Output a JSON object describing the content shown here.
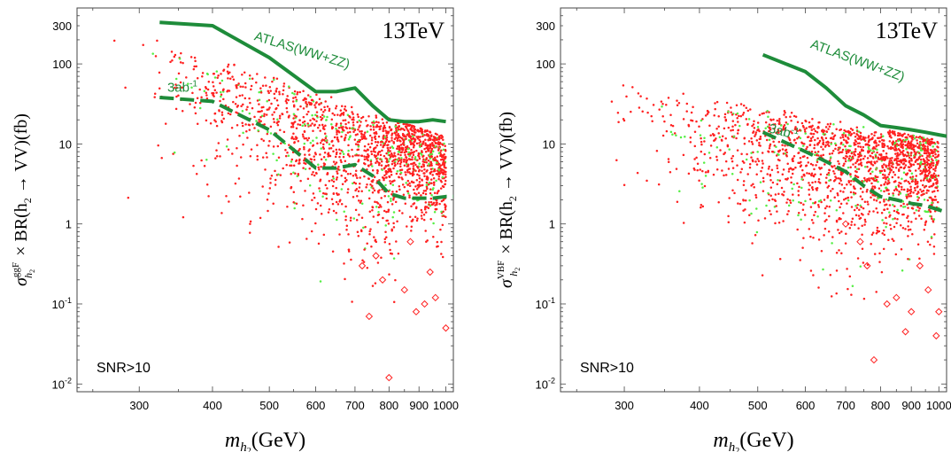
{
  "chart_data": [
    {
      "type": "scatter",
      "energy_label": "13TeV",
      "region_label": "SNR>10",
      "xlabel": {
        "symbol": "m",
        "sub": "h",
        "subsub": "2",
        "unit": "(GeV)"
      },
      "ylabel": {
        "sigma_sup": "ggF",
        "sub": "h",
        "subsub": "2",
        "rest": "× BR(h",
        "rest_sub": "2",
        "rest_tail": " → VV)(fb)"
      },
      "xscale": "log",
      "yscale": "log",
      "xlim": [
        235,
        1030
      ],
      "ylim": [
        0.008,
        500
      ],
      "xticks": [
        300,
        400,
        500,
        600,
        700,
        800,
        900,
        1000
      ],
      "yticks": [
        {
          "v": 300,
          "label": "300"
        },
        {
          "v": 100,
          "label": "100"
        },
        {
          "v": 10,
          "label": "10"
        },
        {
          "v": 1,
          "label": "1"
        },
        {
          "v": 0.1,
          "label": "10",
          "exp": "-1"
        },
        {
          "v": 0.01,
          "label": "10",
          "exp": "-2"
        }
      ],
      "series": [
        {
          "name": "ATLAS(WW+ZZ)",
          "style": "solid",
          "color": "#1e8c3a",
          "x": [
            325,
            400,
            500,
            600,
            650,
            700,
            750,
            800,
            850,
            900,
            950,
            1000
          ],
          "y": [
            330,
            300,
            120,
            45,
            45,
            50,
            30,
            20,
            19,
            19,
            20,
            19
          ]
        },
        {
          "name": "3ab",
          "sup": "-1",
          "style": "dashed",
          "color": "#1e8c3a",
          "x": [
            325,
            400,
            500,
            600,
            650,
            700,
            750,
            800,
            850,
            900,
            950,
            1000,
            1030
          ],
          "y": [
            38,
            34,
            15,
            5,
            5,
            5.5,
            4,
            2.4,
            2.1,
            2.1,
            2.1,
            2.2,
            2.2
          ]
        }
      ],
      "series_label_positions": [
        {
          "x": 470,
          "y": 200,
          "angle": 17
        },
        {
          "x": 335,
          "y": 45,
          "angle": 0
        }
      ],
      "scatter_points": {
        "red_dot": {
          "color": "#ff2020",
          "x_mode": "heavy"
        },
        "green_dot": {
          "color": "#55ee44"
        },
        "red_diamond": {
          "color": "#ff2020",
          "x": [
            760,
            740,
            850,
            890,
            920,
            960,
            1000,
            800,
            780,
            870,
            940,
            720
          ],
          "y": [
            0.4,
            0.07,
            0.15,
            0.08,
            0.1,
            0.12,
            0.05,
            0.012,
            0.2,
            0.6,
            0.25,
            0.3
          ]
        }
      }
    },
    {
      "type": "scatter",
      "energy_label": "13TeV",
      "region_label": "SNR>10",
      "xlabel": {
        "symbol": "m",
        "sub": "h",
        "subsub": "2",
        "unit": "(GeV)"
      },
      "ylabel": {
        "sigma_sup": "VBF",
        "sub": "h",
        "subsub": "2",
        "rest": "× BR(h",
        "rest_sub": "2",
        "rest_tail": " → VV)(fb)"
      },
      "xscale": "log",
      "yscale": "log",
      "xlim": [
        235,
        1030
      ],
      "ylim": [
        0.008,
        500
      ],
      "xticks": [
        300,
        400,
        500,
        600,
        700,
        800,
        900,
        1000
      ],
      "yticks": [
        {
          "v": 300,
          "label": "300"
        },
        {
          "v": 100,
          "label": "100"
        },
        {
          "v": 10,
          "label": "10"
        },
        {
          "v": 1,
          "label": "1"
        },
        {
          "v": 0.1,
          "label": "10",
          "exp": "-1"
        },
        {
          "v": 0.01,
          "label": "10",
          "exp": "-2"
        }
      ],
      "series": [
        {
          "name": "ATLAS(WW+ZZ)",
          "style": "solid",
          "color": "#1e8c3a",
          "x": [
            510,
            600,
            650,
            700,
            750,
            800,
            850,
            900,
            950,
            1000,
            1030
          ],
          "y": [
            130,
            80,
            50,
            30,
            23,
            17,
            16,
            15,
            14,
            13,
            12.5
          ]
        },
        {
          "name": "3ab",
          "sup": "-1",
          "style": "dashed",
          "color": "#1e8c3a",
          "x": [
            510,
            600,
            650,
            700,
            750,
            800,
            850,
            900,
            950,
            1000,
            1030
          ],
          "y": [
            14,
            8,
            6,
            4.5,
            3,
            2.2,
            2,
            1.8,
            1.7,
            1.5,
            1.4
          ]
        }
      ],
      "series_label_positions": [
        {
          "x": 610,
          "y": 160,
          "angle": 20
        },
        {
          "x": 520,
          "y": 14,
          "angle": 14
        }
      ],
      "scatter_points": {
        "red_dot": {
          "color": "#ff2020",
          "x_mode": "heavy"
        },
        "green_dot": {
          "color": "#55ee44"
        },
        "red_diamond": {
          "color": "#ff2020",
          "x": [
            760,
            700,
            850,
            900,
            960,
            1000,
            820,
            780,
            740,
            930,
            880,
            990
          ],
          "y": [
            0.3,
            1.0,
            0.12,
            0.08,
            0.15,
            0.08,
            0.1,
            0.02,
            0.6,
            0.3,
            0.045,
            0.04
          ]
        }
      }
    }
  ]
}
